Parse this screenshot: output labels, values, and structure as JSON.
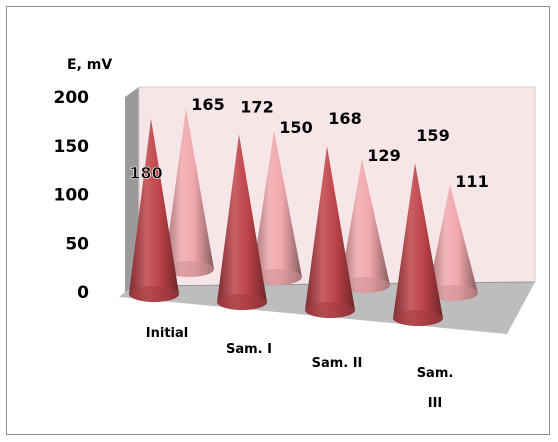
{
  "chart_data": {
    "type": "bar",
    "style": "3d-cone",
    "ylabel": "E, mV",
    "ylim": [
      0,
      200
    ],
    "yticks": [
      "0",
      "50",
      "100",
      "150",
      "200"
    ],
    "categories": [
      "Initial",
      "Sam. I",
      "Sam. II",
      "Sam. III"
    ],
    "category_label_lines": [
      [
        "Initial"
      ],
      [
        "Sam. I"
      ],
      [
        "Sam. II"
      ],
      [
        "Sam.",
        "III"
      ]
    ],
    "series": [
      {
        "values": [
          180,
          172,
          168,
          159
        ],
        "color": "#c0444a"
      },
      {
        "values": [
          165,
          150,
          129,
          111
        ],
        "color": "#f0a8ac"
      }
    ],
    "data_labels": [
      [
        "180",
        "172",
        "168",
        "159"
      ],
      [
        "165",
        "150",
        "129",
        "111"
      ]
    ],
    "wall_color": "#f6e6e8",
    "side_wall_color": "#9a9a9a",
    "floor_color": "#bdbdbd"
  }
}
